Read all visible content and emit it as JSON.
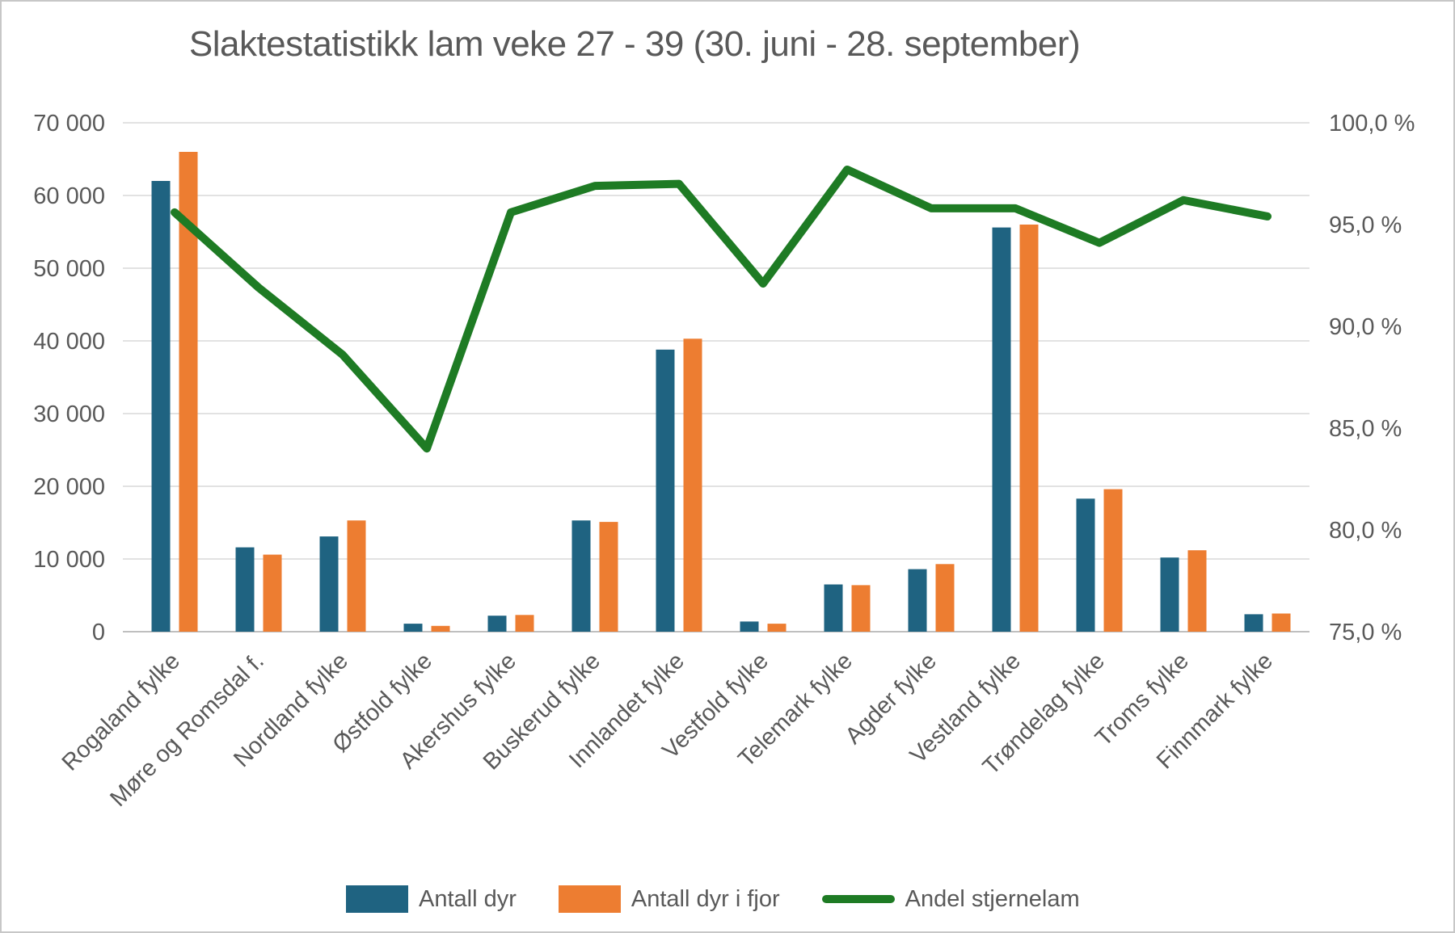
{
  "window": {
    "background": "#ffffff",
    "border_color": "#c7c7c7"
  },
  "styles": {
    "text_color": "#595959",
    "grid_color": "#d9d9d9",
    "axis_line_color": "#bfbfbf",
    "bar_blue": "#1f6381",
    "bar_orange": "#ed7d31",
    "line_green": "#1e7b24"
  },
  "chart_data": {
    "type": "bar",
    "subtype": "combo-bar-line-dual-axis",
    "title": "Slaktestatistikk lam veke 27 - 39 (30. juni - 28. september)",
    "categories": [
      "Rogaland fylke",
      "Møre og Romsdal f.",
      "Nordland fylke",
      "Østfold fylke",
      "Akershus fylke",
      "Buskerud fylke",
      "Innlandet fylke",
      "Vestfold fylke",
      "Telemark fylke",
      "Agder fylke",
      "Vestland fylke",
      "Trøndelag fylke",
      "Troms fylke",
      "Finnmark fylke"
    ],
    "series": [
      {
        "name": "Antall dyr",
        "type": "bar",
        "axis": "left",
        "color": "#1f6381",
        "values": [
          62000,
          11600,
          13100,
          1100,
          2200,
          15300,
          38800,
          1400,
          6500,
          8600,
          55600,
          18300,
          10200,
          2400
        ]
      },
      {
        "name": "Antall dyr i fjor",
        "type": "bar",
        "axis": "left",
        "color": "#ed7d31",
        "values": [
          66000,
          10600,
          15300,
          800,
          2300,
          15100,
          40300,
          1100,
          6400,
          9300,
          56000,
          19600,
          11200,
          2500
        ]
      },
      {
        "name": "Andel stjernelam",
        "type": "line",
        "axis": "right",
        "color": "#1e7b24",
        "values": [
          95.6,
          91.9,
          88.6,
          84.0,
          95.6,
          96.9,
          97.0,
          92.1,
          97.7,
          95.8,
          95.8,
          94.1,
          96.2,
          95.4
        ]
      }
    ],
    "left_axis": {
      "min": 0,
      "max": 70000,
      "step": 10000,
      "tick_labels": [
        "0",
        "10 000",
        "20 000",
        "30 000",
        "40 000",
        "50 000",
        "60 000",
        "70 000"
      ]
    },
    "right_axis": {
      "min": 75,
      "max": 100,
      "step": 5,
      "tick_labels": [
        "75,0 %",
        "80,0 %",
        "85,0 %",
        "90,0 %",
        "95,0 %",
        "100,0 %"
      ]
    },
    "grid": true,
    "legend_position": "bottom"
  }
}
